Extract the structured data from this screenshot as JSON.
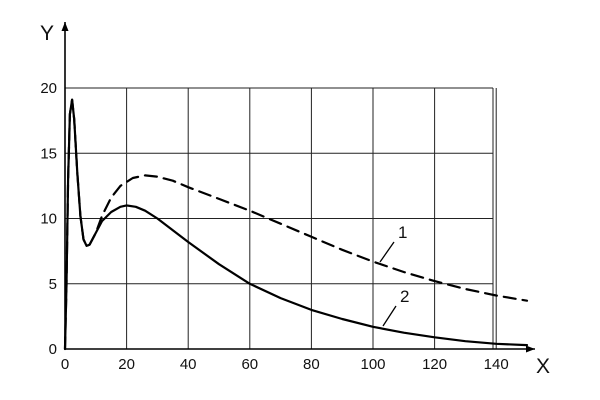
{
  "chart_data": {
    "type": "line",
    "xlabel": "X",
    "ylabel": "Y",
    "xlim": [
      0,
      150
    ],
    "ylim": [
      0,
      20
    ],
    "x_ticks": [
      0,
      20,
      40,
      60,
      80,
      100,
      120,
      140
    ],
    "y_ticks": [
      0,
      5,
      10,
      15,
      20
    ],
    "grid": true,
    "series": [
      {
        "name": "1",
        "style": "dashed",
        "color": "#000000",
        "points": [
          [
            0,
            0
          ],
          [
            0.5,
            5
          ],
          [
            1,
            13
          ],
          [
            1.6,
            18
          ],
          [
            2.3,
            19.1
          ],
          [
            3,
            17.6
          ],
          [
            4,
            13.5
          ],
          [
            5,
            10.2
          ],
          [
            6,
            8.4
          ],
          [
            7,
            7.9
          ],
          [
            8,
            8
          ],
          [
            10,
            8.9
          ],
          [
            12,
            10.2
          ],
          [
            15,
            11.6
          ],
          [
            18,
            12.5
          ],
          [
            22,
            13.1
          ],
          [
            26,
            13.3
          ],
          [
            30,
            13.2
          ],
          [
            35,
            12.9
          ],
          [
            40,
            12.4
          ],
          [
            50,
            11.5
          ],
          [
            60,
            10.6
          ],
          [
            70,
            9.6
          ],
          [
            80,
            8.6
          ],
          [
            90,
            7.6
          ],
          [
            100,
            6.7
          ],
          [
            110,
            5.9
          ],
          [
            120,
            5.2
          ],
          [
            130,
            4.6
          ],
          [
            140,
            4.1
          ],
          [
            150,
            3.7
          ]
        ]
      },
      {
        "name": "2",
        "style": "solid",
        "color": "#000000",
        "points": [
          [
            0,
            0
          ],
          [
            0.5,
            5
          ],
          [
            1,
            13
          ],
          [
            1.6,
            18
          ],
          [
            2.3,
            19.1
          ],
          [
            3,
            17.6
          ],
          [
            4,
            13.5
          ],
          [
            5,
            10.2
          ],
          [
            6,
            8.4
          ],
          [
            7,
            7.9
          ],
          [
            8,
            8
          ],
          [
            10,
            8.9
          ],
          [
            12,
            9.8
          ],
          [
            15,
            10.5
          ],
          [
            18,
            10.9
          ],
          [
            20,
            11
          ],
          [
            23,
            10.9
          ],
          [
            26,
            10.6
          ],
          [
            30,
            10
          ],
          [
            35,
            9.1
          ],
          [
            40,
            8.2
          ],
          [
            50,
            6.5
          ],
          [
            60,
            5
          ],
          [
            70,
            3.9
          ],
          [
            80,
            3
          ],
          [
            90,
            2.3
          ],
          [
            100,
            1.7
          ],
          [
            110,
            1.25
          ],
          [
            120,
            0.9
          ],
          [
            130,
            0.6
          ],
          [
            140,
            0.4
          ],
          [
            150,
            0.3
          ]
        ]
      }
    ],
    "annotations": [
      {
        "text": "1",
        "series": "1"
      },
      {
        "text": "2",
        "series": "2"
      }
    ]
  }
}
